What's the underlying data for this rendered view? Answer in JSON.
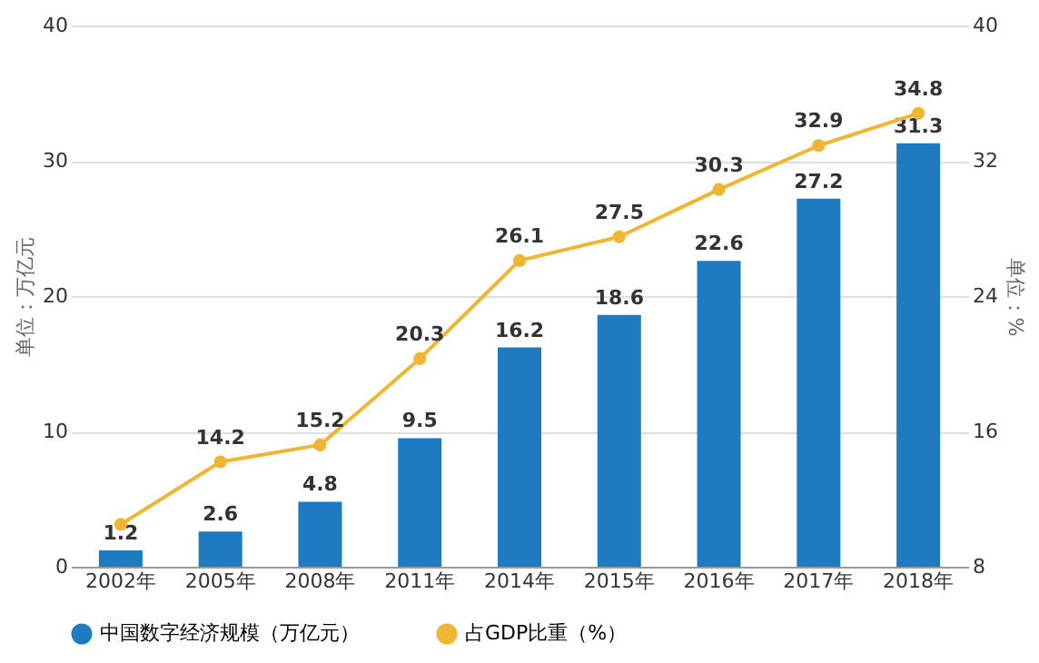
{
  "chart_data": {
    "type": "bar",
    "categories": [
      "2002年",
      "2005年",
      "2008年",
      "2011年",
      "2014年",
      "2015年",
      "2016年",
      "2017年",
      "2018年"
    ],
    "ylabel": "单位：万亿元",
    "y2label": "单位：%",
    "ylim": [
      0,
      40
    ],
    "yticks": [
      0,
      10,
      20,
      30,
      40
    ],
    "y2lim": [
      8,
      40
    ],
    "y2ticks": [
      8,
      16,
      24,
      32,
      40
    ],
    "grid": "y",
    "legend": "bottom",
    "marker": "circle",
    "series": [
      {
        "name": "中国数字经济规模（万亿元）",
        "color": "#1f7bc1",
        "values": [
          1.2,
          2.6,
          4.8,
          9.5,
          16.2,
          18.6,
          22.6,
          27.2,
          31.3
        ],
        "value_labels": [
          "1.2",
          "2.6",
          "4.8",
          "9.5",
          "16.2",
          "18.6",
          "22.6",
          "27.2",
          "31.3"
        ]
      },
      {
        "name": "占GDP比重（%）",
        "type": "line",
        "axis": "y2",
        "color": "#f0b533",
        "values": [
          10.5,
          14.2,
          15.2,
          20.3,
          26.1,
          27.5,
          30.3,
          32.9,
          34.8
        ],
        "value_labels": [
          null,
          "14.2",
          "15.2",
          "20.3",
          "26.1",
          "27.5",
          "30.3",
          "32.9",
          "34.8"
        ]
      }
    ]
  }
}
